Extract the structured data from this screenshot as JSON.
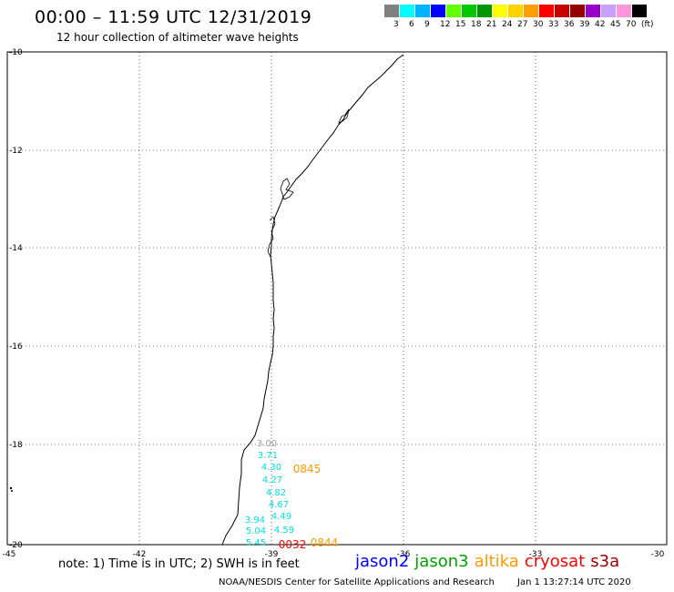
{
  "title": "00:00 – 11:59 UTC 12/31/2019",
  "subtitle": "12 hour collection of altimeter wave heights",
  "color_scale": {
    "colors": [
      "#808080",
      "#00ffff",
      "#00b4ff",
      "#0000ff",
      "#64ff00",
      "#00c800",
      "#009600",
      "#ffff00",
      "#ffd200",
      "#ffa000",
      "#ff0000",
      "#c80000",
      "#960000",
      "#9600c8",
      "#c8a0ff",
      "#ff96dc",
      "#000000"
    ],
    "labels": [
      "3",
      "6",
      "9",
      "12",
      "15",
      "18",
      "21",
      "24",
      "27",
      "30",
      "33",
      "36",
      "39",
      "42",
      "45",
      "70",
      "(ft)"
    ]
  },
  "axes": {
    "lat_labels": [
      "-10",
      "-12",
      "-14",
      "-16",
      "-18",
      "-20"
    ],
    "lon_labels": [
      "-45",
      "-42",
      "-39",
      "-36",
      "-33",
      "-30"
    ]
  },
  "observations": [
    {
      "value": "3.00",
      "color": "#a0a0a0"
    },
    {
      "value": "3.71",
      "color": "#00e0e0"
    },
    {
      "value": "4.30",
      "color": "#00e0e0"
    },
    {
      "value": "4.27",
      "color": "#00e0e0"
    },
    {
      "value": "4.82",
      "color": "#00e0e0"
    },
    {
      "value": "4.67",
      "color": "#00e0e0"
    },
    {
      "value": "4.49",
      "color": "#00e0e0"
    },
    {
      "value": "3.94",
      "color": "#00e0e0"
    },
    {
      "value": "4.59",
      "color": "#00e0e0"
    },
    {
      "value": "5.04",
      "color": "#00e0e0"
    },
    {
      "value": "5.45",
      "color": "#00e0e0"
    }
  ],
  "pass_times": [
    {
      "value": "0845",
      "color": "#ff9900"
    },
    {
      "value": "0844",
      "color": "#ff9900"
    },
    {
      "value": "0032",
      "color": "#ff0000"
    }
  ],
  "note": "note: 1) Time is in UTC; 2) SWH is in feet",
  "satellites": [
    {
      "name": "jason2",
      "color": "#0000ff"
    },
    {
      "name": "jason3",
      "color": "#00a000"
    },
    {
      "name": "altika",
      "color": "#ff9900"
    },
    {
      "name": "cryosat",
      "color": "#ff0000"
    },
    {
      "name": "s3a",
      "color": "#990000"
    }
  ],
  "footer": {
    "org": "NOAA/NESDIS Center for Satellite Applications and Research",
    "timestamp": "Jan  1 13:27:14 UTC 2020"
  }
}
